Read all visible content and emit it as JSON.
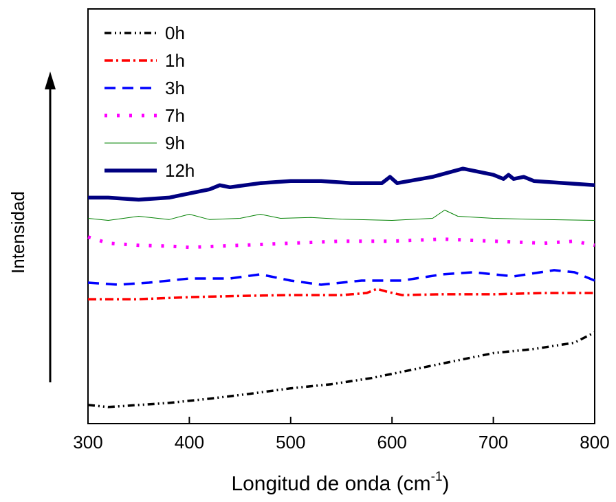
{
  "chart_data": {
    "type": "line",
    "xlabel": "Longitud de onda (cm",
    "xlabel_sup": "-1",
    "xlabel_close": ")",
    "ylabel": "Intensidad",
    "xlim": [
      300,
      800
    ],
    "ylim": [
      0,
      10
    ],
    "x_ticks": [
      "300",
      "400",
      "500",
      "600",
      "700",
      "800"
    ],
    "y_ticks_shown": false,
    "legend_position": "top-left",
    "grid": false,
    "series": [
      {
        "name": "0h",
        "color": "#000000",
        "style": "dash-dot-dot",
        "width": 3.5,
        "points": [
          [
            300,
            0.45
          ],
          [
            320,
            0.4
          ],
          [
            350,
            0.45
          ],
          [
            380,
            0.5
          ],
          [
            420,
            0.6
          ],
          [
            460,
            0.72
          ],
          [
            500,
            0.85
          ],
          [
            540,
            0.95
          ],
          [
            580,
            1.1
          ],
          [
            620,
            1.3
          ],
          [
            660,
            1.5
          ],
          [
            700,
            1.7
          ],
          [
            740,
            1.8
          ],
          [
            780,
            1.95
          ],
          [
            800,
            2.2
          ]
        ]
      },
      {
        "name": "1h",
        "color": "#ff0000",
        "style": "dash-dot",
        "width": 3.5,
        "points": [
          [
            300,
            3.0
          ],
          [
            350,
            3.0
          ],
          [
            400,
            3.05
          ],
          [
            450,
            3.08
          ],
          [
            500,
            3.1
          ],
          [
            550,
            3.1
          ],
          [
            575,
            3.15
          ],
          [
            585,
            3.25
          ],
          [
            595,
            3.18
          ],
          [
            610,
            3.1
          ],
          [
            650,
            3.12
          ],
          [
            700,
            3.12
          ],
          [
            750,
            3.15
          ],
          [
            800,
            3.15
          ]
        ]
      },
      {
        "name": "3h",
        "color": "#0000ff",
        "style": "dash",
        "width": 3.5,
        "points": [
          [
            300,
            3.4
          ],
          [
            330,
            3.35
          ],
          [
            360,
            3.4
          ],
          [
            400,
            3.5
          ],
          [
            440,
            3.5
          ],
          [
            470,
            3.6
          ],
          [
            500,
            3.45
          ],
          [
            530,
            3.35
          ],
          [
            570,
            3.45
          ],
          [
            610,
            3.45
          ],
          [
            650,
            3.6
          ],
          [
            680,
            3.65
          ],
          [
            720,
            3.55
          ],
          [
            760,
            3.7
          ],
          [
            780,
            3.65
          ],
          [
            800,
            3.45
          ]
        ]
      },
      {
        "name": "7h",
        "color": "#ff00ff",
        "style": "dot",
        "width": 5,
        "points": [
          [
            300,
            4.5
          ],
          [
            320,
            4.35
          ],
          [
            350,
            4.3
          ],
          [
            380,
            4.28
          ],
          [
            400,
            4.25
          ],
          [
            450,
            4.3
          ],
          [
            500,
            4.35
          ],
          [
            550,
            4.4
          ],
          [
            600,
            4.4
          ],
          [
            650,
            4.45
          ],
          [
            700,
            4.4
          ],
          [
            750,
            4.35
          ],
          [
            780,
            4.4
          ],
          [
            800,
            4.3
          ]
        ]
      },
      {
        "name": "9h",
        "color": "#008000",
        "style": "solid",
        "width": 1,
        "points": [
          [
            300,
            4.95
          ],
          [
            320,
            4.9
          ],
          [
            350,
            5.0
          ],
          [
            380,
            4.92
          ],
          [
            400,
            5.05
          ],
          [
            420,
            4.92
          ],
          [
            450,
            4.95
          ],
          [
            470,
            5.05
          ],
          [
            490,
            4.95
          ],
          [
            520,
            4.97
          ],
          [
            550,
            4.93
          ],
          [
            600,
            4.9
          ],
          [
            640,
            4.95
          ],
          [
            652,
            5.15
          ],
          [
            665,
            5.0
          ],
          [
            700,
            4.95
          ],
          [
            750,
            4.92
          ],
          [
            800,
            4.9
          ]
        ]
      },
      {
        "name": "12h",
        "color": "#000080",
        "style": "solid",
        "width": 5.5,
        "points": [
          [
            300,
            5.45
          ],
          [
            320,
            5.45
          ],
          [
            350,
            5.4
          ],
          [
            380,
            5.45
          ],
          [
            400,
            5.55
          ],
          [
            420,
            5.65
          ],
          [
            430,
            5.75
          ],
          [
            440,
            5.7
          ],
          [
            470,
            5.8
          ],
          [
            500,
            5.85
          ],
          [
            530,
            5.85
          ],
          [
            560,
            5.8
          ],
          [
            590,
            5.8
          ],
          [
            598,
            5.95
          ],
          [
            605,
            5.8
          ],
          [
            640,
            5.95
          ],
          [
            670,
            6.15
          ],
          [
            690,
            6.05
          ],
          [
            700,
            6.0
          ],
          [
            710,
            5.9
          ],
          [
            715,
            6.0
          ],
          [
            720,
            5.9
          ],
          [
            730,
            5.95
          ],
          [
            740,
            5.85
          ],
          [
            770,
            5.8
          ],
          [
            800,
            5.75
          ]
        ]
      }
    ]
  }
}
